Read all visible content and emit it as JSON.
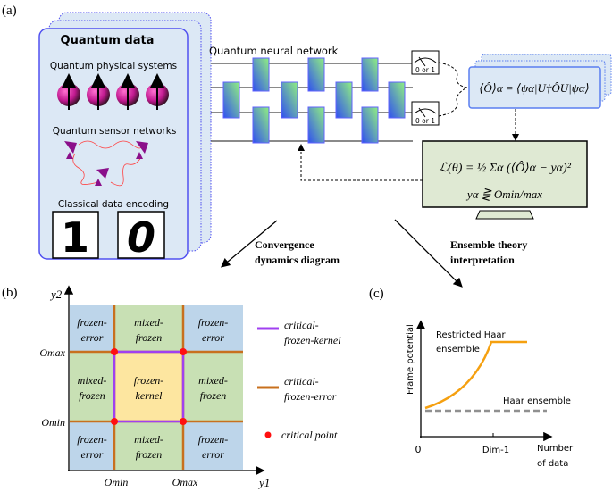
{
  "panel_a": {
    "label": "(a)",
    "quantum_data": {
      "title": "Quantum data",
      "physical_systems": "Quantum physical systems",
      "sensor_networks": "Quantum sensor networks",
      "classical_encoding": "Classical data encoding",
      "digits": [
        "1",
        "0"
      ]
    },
    "qnn_title": "Quantum neural network",
    "meter_label": "0 or 1",
    "expectation_formula": "⟨Ô⟩α = ⟨ψα|U†ÔU|ψα⟩",
    "loss_formula": "ℒ(θ) = ½ Σα (⟨Ô⟩α − yα)²",
    "loss_condition": "yα ⋛ Omin/max",
    "arrow_left_text": [
      "Convergence",
      "dynamics diagram"
    ],
    "arrow_right_text": [
      "Ensemble theory",
      "interpretation"
    ],
    "colors": {
      "panel_fill": "#dce8f5",
      "panel_border": "#5050f0",
      "loss_fill": "#dfe9d3",
      "sphere": "#c0198f",
      "dish": "#8a0f8a"
    }
  },
  "panel_b": {
    "label": "(b)",
    "y_axis_label": "y2",
    "x_axis_label": "y1",
    "y_ticks": [
      "Omax",
      "Omin"
    ],
    "x_ticks": [
      "Omin",
      "Omax"
    ],
    "regions": [
      [
        "frozen-|error",
        "mixed-|frozen",
        "frozen-|error"
      ],
      [
        "mixed-|frozen",
        "frozen-|kernel",
        "mixed-|frozen"
      ],
      [
        "frozen-|error",
        "mixed-|frozen",
        "frozen-|error"
      ]
    ],
    "legend": [
      {
        "lines": [
          "critical-",
          "frozen-kernel"
        ],
        "color": "#a040f0"
      },
      {
        "lines": [
          "critical-",
          "frozen-error"
        ],
        "color": "#c8701e"
      },
      {
        "lines": [
          "critical point"
        ],
        "color": "#ff1010"
      }
    ],
    "colors": {
      "frozen_error": "#bdd5ea",
      "mixed_frozen": "#c8e0b4",
      "frozen_kernel": "#fde6a0"
    }
  },
  "panel_c": {
    "label": "(c)",
    "y_axis_label": "Frame potential",
    "x_axis_label": [
      "Number",
      "of data"
    ],
    "x_ticks": [
      "0",
      "Dim-1"
    ],
    "restricted_label": [
      "Restricted Haar",
      "ensemble"
    ],
    "haar_label": "Haar ensemble",
    "colors": {
      "restricted": "#f5a010",
      "haar": "#909090"
    }
  }
}
